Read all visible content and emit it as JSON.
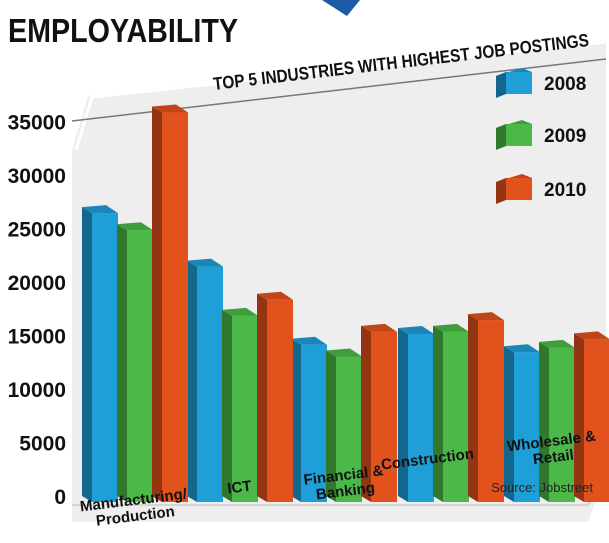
{
  "header": {
    "title": "EMPLOYABILITY"
  },
  "colors": {
    "2008": "#1f9fd8",
    "2009": "#4cb848",
    "2010": "#e2521d",
    "text": "#111111",
    "panel": "#efefef",
    "banner": "#1b5aa5"
  },
  "chart_data": {
    "type": "bar",
    "title": "TOP 5 INDUSTRIES WITH HIGHEST JOB POSTINGS",
    "categories": [
      [
        "Manufacturing/",
        "Production"
      ],
      [
        "ICT"
      ],
      [
        "Financial &",
        "Banking"
      ],
      [
        "Construction"
      ],
      [
        "Wholesale &",
        "Retail"
      ]
    ],
    "series": [
      {
        "name": "2008",
        "values": [
          27000,
          22000,
          14700,
          15700,
          14000
        ]
      },
      {
        "name": "2009",
        "values": [
          25400,
          17400,
          13600,
          15900,
          14400
        ]
      },
      {
        "name": "2010",
        "values": [
          36400,
          18900,
          15900,
          17000,
          15200
        ]
      }
    ],
    "yticks": [
      0,
      5000,
      10000,
      15000,
      20000,
      25000,
      30000,
      35000
    ],
    "ylim": [
      0,
      37000
    ],
    "legend_position": "top-right",
    "grid": false,
    "source": "Source: Jobstreet"
  }
}
